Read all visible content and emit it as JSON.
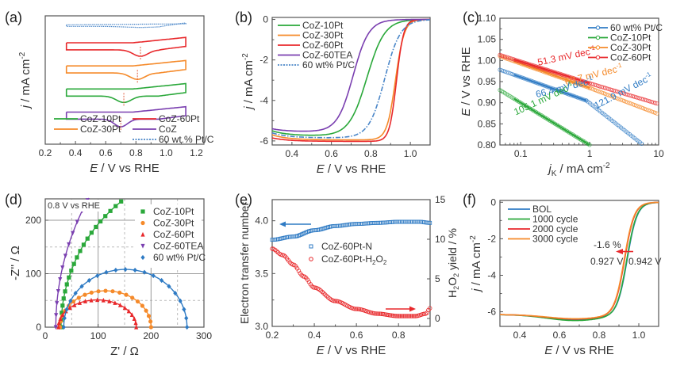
{
  "chart_data": [
    {
      "id": "a",
      "panel_label": "(a)",
      "type": "line",
      "xlabel_italic": "E",
      "xlabel_rest": " / V vs RHE",
      "ylabel_italic": "j",
      "ylabel_rest": " / mA cm",
      "ylabel_sup": "-2",
      "xlim": [
        0.2,
        1.25
      ],
      "xticks": [
        0.2,
        0.4,
        0.6,
        0.8,
        1.0,
        1.2
      ],
      "xtick_labels": [
        "0.2",
        "0.4",
        "0.6",
        "0.8",
        "1.0",
        "1.2"
      ],
      "yticks": [],
      "ylim": [
        0,
        1
      ],
      "note": "Stacked CV curves (offset, arbitrary current units)",
      "series": [
        {
          "name": "60 wt.% Pt/C",
          "color": "#4a86c8",
          "dashed": true,
          "offset": 0.93,
          "peak_E": 0.83,
          "peak_depth": 0.0,
          "width": 0.03
        },
        {
          "name": "CoZ-60Pt",
          "color": "#e8282b",
          "offset": 0.78,
          "peak_E": 0.83,
          "peak_depth": 0.05,
          "width": 0.07
        },
        {
          "name": "CoZ-30Pt",
          "color": "#f58a2a",
          "offset": 0.6,
          "peak_E": 0.81,
          "peak_depth": 0.05,
          "width": 0.07
        },
        {
          "name": "CoZ-10Pt",
          "color": "#2aa83a",
          "offset": 0.42,
          "peak_E": 0.72,
          "peak_depth": 0.05,
          "width": 0.07
        },
        {
          "name": "CoZ",
          "color": "#7a3fb0",
          "offset": 0.24,
          "peak_E": 0.7,
          "peak_depth": 0.06,
          "width": 0.06
        }
      ],
      "legend": [
        {
          "label": "CoZ-10Pt",
          "color": "#2aa83a"
        },
        {
          "label": "CoZ-60Pt",
          "color": "#e8282b"
        },
        {
          "label": "CoZ-30Pt",
          "color": "#f58a2a"
        },
        {
          "label": "CoZ",
          "color": "#7a3fb0"
        },
        {
          "label": "60 wt.% Pt/C",
          "color": "#4a86c8",
          "dashed": true
        }
      ]
    },
    {
      "id": "b",
      "panel_label": "(b)",
      "type": "line",
      "xlabel_italic": "E",
      "xlabel_rest": " / V vs RHE",
      "ylabel_italic": "j",
      "ylabel_rest": " / mA cm",
      "ylabel_sup": "-2",
      "xlim": [
        0.3,
        1.1
      ],
      "ylim": [
        -6.2,
        0.1
      ],
      "xticks": [
        0.4,
        0.6,
        0.8,
        1.0
      ],
      "xtick_labels": [
        "0.4",
        "0.6",
        "0.8",
        "1.0"
      ],
      "yticks": [
        0,
        -2,
        -4,
        -6
      ],
      "ytick_labels": [
        "0",
        "-2",
        "-4",
        "-6"
      ],
      "series": [
        {
          "name": "CoZ-10Pt",
          "color": "#2aa83a",
          "half_wave_E": 0.78,
          "limit": -5.75,
          "start": -5.5,
          "slope": 0.045
        },
        {
          "name": "CoZ-30Pt",
          "color": "#f58a2a",
          "half_wave_E": 0.925,
          "limit": -5.95,
          "start": -5.7,
          "slope": 0.022
        },
        {
          "name": "CoZ-60Pt",
          "color": "#e8282b",
          "half_wave_E": 0.93,
          "limit": -6.02,
          "start": -5.85,
          "slope": 0.018
        },
        {
          "name": "CoZ-60TEA",
          "color": "#7a3fb0",
          "half_wave_E": 0.71,
          "limit": -5.55,
          "start": -5.4,
          "slope": 0.04
        },
        {
          "name": "60 wt% Pt/C",
          "color": "#4a86c8",
          "dashed": true,
          "half_wave_E": 0.87,
          "limit": -5.85,
          "start": -5.6,
          "slope": 0.04
        }
      ]
    },
    {
      "id": "c",
      "panel_label": "(c)",
      "type": "scatter",
      "xlabel_italic": "j",
      "xlabel_sub": "K",
      "xlabel_rest": " / mA cm",
      "xlabel_sup": "-2",
      "ylabel_italic": "E",
      "ylabel_rest": " / V vs RHE",
      "xscale": "log",
      "xlim": [
        0.05,
        10
      ],
      "ylim": [
        0.8,
        1.1
      ],
      "xticks": [
        0.1,
        1,
        10
      ],
      "xtick_labels": [
        "0.1",
        "1",
        "10"
      ],
      "yticks": [
        0.8,
        0.85,
        0.9,
        0.95,
        1.0,
        1.05,
        1.1
      ],
      "ytick_labels": [
        "0.80",
        "0.85",
        "0.90",
        "0.95",
        "1.00",
        "1.05",
        "1.10"
      ],
      "series": [
        {
          "name": "60 wt% Pt/C",
          "color": "#2f7bc4",
          "segments": [
            [
              0.05,
              0.978,
              0.9,
              0.905
            ],
            [
              0.9,
              0.905,
              6.0,
              0.8
            ]
          ]
        },
        {
          "name": "CoZ-10Pt",
          "color": "#2aa83a",
          "segments": [
            [
              0.05,
              0.93,
              1.0,
              0.8
            ]
          ]
        },
        {
          "name": "CoZ-30Pt",
          "color": "#f58a2a",
          "segments": [
            [
              0.05,
              1.01,
              1.0,
              0.935
            ],
            [
              1.0,
              0.935,
              10,
              0.873
            ]
          ]
        },
        {
          "name": "CoZ-60Pt",
          "color": "#e8282b",
          "segments": [
            [
              0.05,
              1.013,
              1.0,
              0.946
            ],
            [
              1.0,
              0.946,
              10,
              0.897
            ]
          ]
        }
      ],
      "annotations": [
        {
          "text": "51.3 mV dec",
          "sup": "-1",
          "color": "#e8282b",
          "x": 0.18,
          "y": 0.988,
          "rot": -12
        },
        {
          "text": "60.7 mV dec",
          "sup": "-1",
          "color": "#f58a2a",
          "x": 0.45,
          "y": 0.942,
          "rot": -14
        },
        {
          "text": "66.4 mV dec",
          "sup": "-1",
          "color": "#2f7bc4",
          "x": 0.17,
          "y": 0.912,
          "rot": -14
        },
        {
          "text": "121.9 mV dec",
          "sup": "-1",
          "color": "#2f7bc4",
          "x": 1.25,
          "y": 0.885,
          "rot": -28
        },
        {
          "text": "105.1 mV dec",
          "sup": "-1",
          "color": "#2aa83a",
          "x": 0.085,
          "y": 0.87,
          "rot": -25
        }
      ]
    },
    {
      "id": "d",
      "panel_label": "(d)",
      "type": "scatter",
      "xlabel_rest": "Z' / Ω",
      "ylabel_rest": "-Z'' / Ω",
      "inset_label": "0.8 V vs RHE",
      "xlim": [
        0,
        300
      ],
      "ylim": [
        0,
        240
      ],
      "xticks": [
        0,
        100,
        200,
        300
      ],
      "xtick_labels": [
        "0",
        "100",
        "200",
        "300"
      ],
      "yticks": [
        0,
        100,
        200
      ],
      "ytick_labels": [
        "0",
        "100",
        "200"
      ],
      "minor_grid_x": [
        50,
        150,
        250
      ],
      "minor_grid_y": [
        50,
        150
      ],
      "series": [
        {
          "name": "CoZ-10Pt",
          "color": "#2aa83a",
          "marker": "square",
          "arc": {
            "x0": 30,
            "xc": 330,
            "r": 300,
            "kind": "open"
          }
        },
        {
          "name": "CoZ-30Pt",
          "color": "#f58a2a",
          "marker": "circle",
          "arc": {
            "x0": 28,
            "x1": 200,
            "h": 68
          }
        },
        {
          "name": "CoZ-60Pt",
          "color": "#e8282b",
          "marker": "triangle-up",
          "arc": {
            "x0": 25,
            "x1": 172,
            "h": 51
          }
        },
        {
          "name": "CoZ-60TEA",
          "color": "#7a3fb0",
          "marker": "triangle-down",
          "arc": {
            "x0": 22,
            "xc": 520,
            "r": 500,
            "kind": "open"
          }
        },
        {
          "name": "60 wt% Pt/C",
          "color": "#2f7bc4",
          "marker": "diamond",
          "arc": {
            "x0": 35,
            "x1": 268,
            "h": 108
          }
        }
      ]
    },
    {
      "id": "e",
      "panel_label": "(e)",
      "type": "scatter",
      "xlabel_italic": "E",
      "xlabel_rest": " / V vs RHE",
      "ylabel_rest": "Electron transfer number",
      "y2label": "H2O2 yield / %",
      "xlim": [
        0.2,
        0.95
      ],
      "ylim": [
        3.0,
        4.2
      ],
      "y2lim": [
        -1,
        15
      ],
      "xticks": [
        0.2,
        0.4,
        0.6,
        0.8
      ],
      "xtick_labels": [
        "0.2",
        "0.4",
        "0.6",
        "0.8"
      ],
      "yticks": [
        3.0,
        3.5,
        4.0
      ],
      "ytick_labels": [
        "3.0",
        "3.5",
        "4.0"
      ],
      "y2ticks": [
        0,
        5,
        10,
        15
      ],
      "y2tick_labels": [
        "0",
        "5",
        "10",
        "15"
      ],
      "series": [
        {
          "name": "CoZ-60Pt-N",
          "color": "#2f7bc4",
          "axis": "left",
          "points": [
            [
              0.2,
              3.82
            ],
            [
              0.3,
              3.85
            ],
            [
              0.4,
              3.91
            ],
            [
              0.5,
              3.95
            ],
            [
              0.6,
              3.97
            ],
            [
              0.7,
              3.98
            ],
            [
              0.8,
              3.99
            ],
            [
              0.9,
              3.99
            ],
            [
              0.95,
              3.98
            ]
          ]
        },
        {
          "name": "CoZ-60Pt-H2O2",
          "color": "#e8282b",
          "axis": "right",
          "points": [
            [
              0.2,
              8.8
            ],
            [
              0.25,
              8.0
            ],
            [
              0.3,
              6.8
            ],
            [
              0.35,
              5.3
            ],
            [
              0.4,
              3.9
            ],
            [
              0.5,
              2.2
            ],
            [
              0.6,
              1.2
            ],
            [
              0.7,
              0.6
            ],
            [
              0.8,
              0.3
            ],
            [
              0.88,
              0.3
            ],
            [
              0.93,
              0.6
            ],
            [
              0.95,
              1.3
            ]
          ]
        }
      ],
      "legend": [
        {
          "label": "CoZ-60Pt-N",
          "color": "#2f7bc4",
          "marker": "square"
        },
        {
          "label": "CoZ-60Pt-H",
          "sub1": "2",
          "mid": "O",
          "sub2": "2",
          "color": "#e8282b",
          "marker": "circle"
        }
      ]
    },
    {
      "id": "f",
      "panel_label": "(f)",
      "type": "line",
      "xlabel_italic": "E",
      "xlabel_rest": " / V vs RHE",
      "ylabel_italic": "j",
      "ylabel_rest": " / mA cm",
      "ylabel_sup": "-2",
      "xlim": [
        0.3,
        1.1
      ],
      "ylim": [
        -6.8,
        0.1
      ],
      "xticks": [
        0.4,
        0.6,
        0.8,
        1.0
      ],
      "xtick_labels": [
        "0.4",
        "0.6",
        "0.8",
        "1.0"
      ],
      "yticks": [
        0,
        -2,
        -4,
        -6
      ],
      "ytick_labels": [
        "0",
        "-2",
        "-4",
        "-6"
      ],
      "series": [
        {
          "name": "BOL",
          "color": "#2f7bc4",
          "half_wave_E": 0.942,
          "limit": -6.45
        },
        {
          "name": "1000 cycle",
          "color": "#2aa83a",
          "half_wave_E": 0.94,
          "limit": -6.48
        },
        {
          "name": "2000 cycle",
          "color": "#e8282b",
          "half_wave_E": 0.929,
          "limit": -6.4
        },
        {
          "name": "3000 cycle",
          "color": "#f58a2a",
          "half_wave_E": 0.927,
          "limit": -6.38
        }
      ],
      "annotations": {
        "shift_text": "-1.6 %",
        "left_value": "0.927 V",
        "right_value": "0.942 V",
        "arrow_y": -2.7
      }
    }
  ]
}
